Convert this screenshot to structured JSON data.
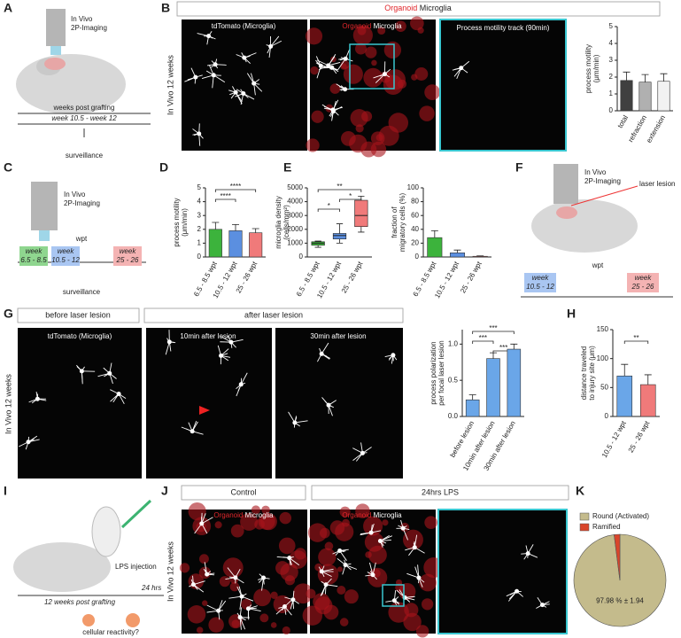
{
  "figure": {
    "panel_labels": [
      "A",
      "B",
      "C",
      "D",
      "E",
      "F",
      "G",
      "H",
      "I",
      "J",
      "K"
    ],
    "a": {
      "imaging": [
        "In Vivo",
        "2P-Imaging"
      ],
      "timeline_title": "weeks post grafting",
      "window": "week 10.5 - week 12",
      "caption": "surveillance"
    },
    "b": {
      "header_red": "Organoid",
      "header": "Microglia",
      "side": "In Vivo 12 weeks",
      "image1": "tdTomato (Microglia)",
      "image2_red": "Organoid",
      "image2": "Microglia",
      "image3": "Process motility track (90min)"
    },
    "c": {
      "imaging": [
        "In Vivo",
        "2P-Imaging"
      ],
      "timeline_title": "wpt",
      "windows": [
        [
          "week",
          "6.5 - 8.5"
        ],
        [
          "week",
          "10.5 - 12"
        ],
        [
          "week",
          "25 - 26"
        ]
      ],
      "caption": "surveillance"
    },
    "f": {
      "imaging": [
        "In Vivo",
        "2P-Imaging"
      ],
      "lesion": "laser lesion",
      "timeline_title": "wpt",
      "windows": [
        [
          "week",
          "10.5 - 12"
        ],
        [
          "week",
          "25 - 26"
        ]
      ]
    },
    "g": {
      "header1": "before laser lesion",
      "header2": "after laser lesion",
      "side": "In Vivo 12 weeks",
      "image1": "tdTomato (Microglia)",
      "image2": "10min after lesion",
      "image3": "30min after lesion"
    },
    "i": {
      "injection": "LPS injection",
      "interval": "24 hrs",
      "timeline": "12 weeks post grafting",
      "caption": "cellular reactivity?"
    },
    "j": {
      "header1": "Control",
      "header2": "24hrs LPS",
      "side": "In Vivo 12 weeks",
      "image_red": "Organoid",
      "image": "Microglia"
    }
  },
  "chart_data": [
    {
      "type": "bar",
      "ylabel": [
        "process motility",
        "(μm/min)"
      ],
      "categories": [
        "total",
        "refraction",
        "extension"
      ],
      "values": [
        1.8,
        1.7,
        1.75
      ],
      "errors": [
        0.5,
        0.45,
        0.45
      ],
      "colors": [
        "#404040",
        "#b0b0b0",
        "#f2f2f2"
      ],
      "ylim": [
        0,
        5
      ],
      "yticks": [
        0,
        1,
        2,
        3,
        4,
        5
      ]
    },
    {
      "type": "bar",
      "ylabel": [
        "process motility",
        "(μm/min)"
      ],
      "categories": [
        "6.5 - 8.5 wpt",
        "10.5 - 12 wpt",
        "25 - 26 wpt"
      ],
      "values": [
        2.0,
        1.9,
        1.75
      ],
      "errors": [
        0.5,
        0.45,
        0.3
      ],
      "colors": [
        "#3cb33c",
        "#5b8fe0",
        "#f07a7a"
      ],
      "ylim": [
        0,
        5
      ],
      "yticks": [
        0,
        1,
        2,
        3,
        4,
        5
      ],
      "annotations": [
        "****",
        "****"
      ]
    },
    {
      "type": "box",
      "ylabel": [
        "microglia density",
        "(cells/mm²)"
      ],
      "categories": [
        "6.5 - 8.5 wpt",
        "10.5 - 12 wpt",
        "25 - 26 wpt"
      ],
      "min": [
        700,
        1000,
        1800
      ],
      "q1": [
        850,
        1300,
        2200
      ],
      "median": [
        1000,
        1550,
        3000
      ],
      "q3": [
        1100,
        1700,
        4100
      ],
      "max": [
        1150,
        2400,
        4400
      ],
      "colors": [
        "#3cb33c",
        "#5b8fe0",
        "#f07a7a"
      ],
      "ylim": [
        0,
        5000
      ],
      "yticks": [
        0,
        1000,
        2000,
        3000,
        4000,
        5000
      ],
      "annotations": [
        "**",
        "*",
        "*"
      ]
    },
    {
      "type": "bar",
      "ylabel": [
        "fraction of",
        "migratory cells (%)"
      ],
      "categories": [
        "6.5 - 8.5 wpt",
        "10.5 - 12 wpt",
        "25 - 26 wpt"
      ],
      "values": [
        28,
        6,
        1
      ],
      "errors": [
        10,
        4,
        0.5
      ],
      "colors": [
        "#3cb33c",
        "#5b8fe0",
        "#f07a7a"
      ],
      "ylim": [
        0,
        100
      ],
      "yticks": [
        0,
        20,
        40,
        60,
        80,
        100
      ]
    },
    {
      "type": "bar",
      "ylabel": [
        "process polarization",
        "per focal laser lesion"
      ],
      "categories": [
        "before lesion",
        "10min after lesion",
        "30min after lesion"
      ],
      "values": [
        0.23,
        0.8,
        0.93
      ],
      "errors": [
        0.07,
        0.08,
        0.07
      ],
      "colors": [
        "#6aa6e8",
        "#6aa6e8",
        "#6aa6e8"
      ],
      "ylim": [
        0,
        1.2
      ],
      "yticks": [
        {
          "value": 0,
          "label": "0.0"
        },
        {
          "value": 0.5,
          "label": "0.5"
        },
        {
          "value": 1,
          "label": "1.0"
        }
      ],
      "annotations": [
        "***",
        "***",
        "***"
      ]
    },
    {
      "type": "bar",
      "ylabel": [
        "distance traveled",
        "to injury site (μm)"
      ],
      "categories": [
        "10.5 - 12 wpt",
        "25 - 26 wpt"
      ],
      "values": [
        70,
        55
      ],
      "errors": [
        20,
        17
      ],
      "colors": [
        "#6aa6e8",
        "#f07a7a"
      ],
      "ylim": [
        0,
        150
      ],
      "yticks": [
        0,
        50,
        100,
        150
      ],
      "annotations": [
        "**"
      ]
    },
    {
      "type": "pie",
      "categories": [
        "Round (Activated)",
        "Ramified"
      ],
      "values": [
        97.98,
        2.02
      ],
      "value_labels": [
        "97.98 % ± 1.94",
        null
      ],
      "colors": [
        "#c4bb8c",
        "#d9452b"
      ]
    }
  ]
}
